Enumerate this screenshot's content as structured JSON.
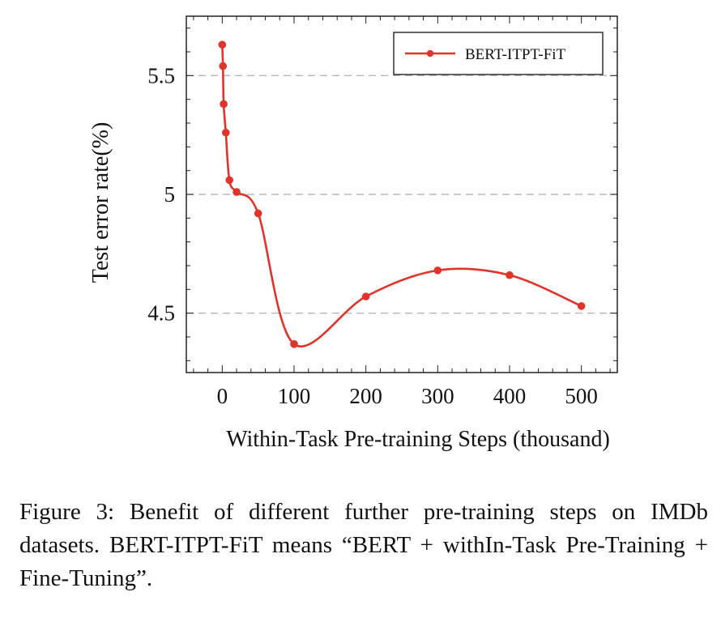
{
  "chart_data": {
    "type": "line",
    "xlabel": "Within-Task Pre-training Steps (thousand)",
    "ylabel": "Test error rate(%)",
    "xlim": [
      -50,
      550
    ],
    "ylim": [
      4.25,
      5.75
    ],
    "xticks": [
      0,
      100,
      200,
      300,
      400,
      500
    ],
    "xtick_labels": [
      "0",
      "100",
      "200",
      "300",
      "400",
      "500"
    ],
    "yticks": [
      4.5,
      5.0,
      5.5
    ],
    "ytick_labels": [
      "4.5",
      "5",
      "5.5"
    ],
    "grid": "horizontal dashed",
    "legend_position": "top-right",
    "series": [
      {
        "name": "BERT-ITPT-FiT",
        "color": "#e0342a",
        "x": [
          0,
          1,
          2,
          5,
          10,
          20,
          50,
          100,
          200,
          300,
          400,
          500
        ],
        "y": [
          5.63,
          5.54,
          5.38,
          5.26,
          5.06,
          5.01,
          4.92,
          4.37,
          4.57,
          4.68,
          4.66,
          4.53
        ]
      }
    ]
  },
  "caption": "Figure 3: Benefit of different further pre-training steps on IMDb datasets.  BERT-ITPT-FiT means “BERT + withIn-Task Pre-Training + Fine-Tuning”."
}
